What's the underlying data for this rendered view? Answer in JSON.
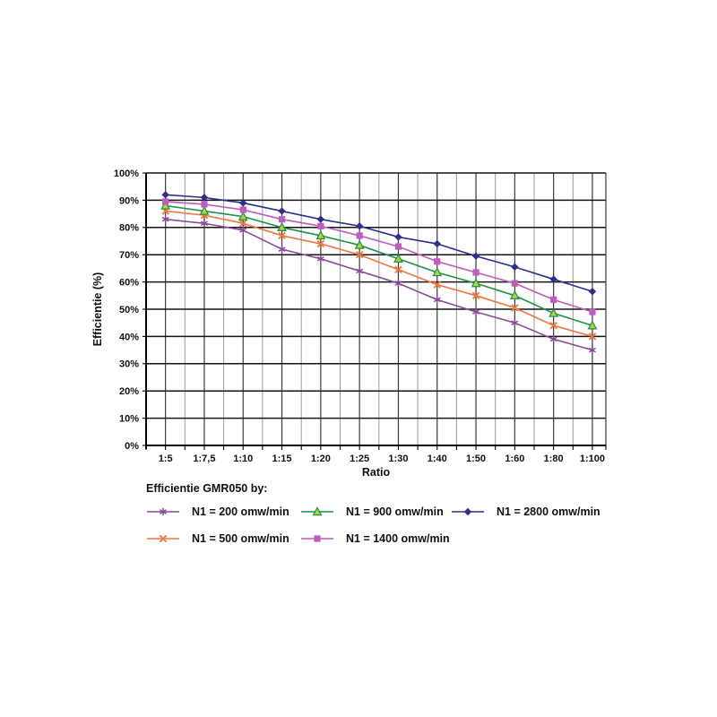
{
  "page": {
    "background": "#ffffff"
  },
  "chart_data": {
    "type": "line",
    "title": "",
    "legend_title": "Efficientie GMR050 by:",
    "xlabel": "Ratio",
    "ylabel": "Efficientie (%)",
    "categories": [
      "1:5",
      "1:7,5",
      "1:10",
      "1:15",
      "1:20",
      "1:25",
      "1:30",
      "1:40",
      "1:50",
      "1:60",
      "1:80",
      "1:100"
    ],
    "ylim": [
      0,
      100
    ],
    "y_tick_step": 10,
    "y_tick_labels": [
      "0%",
      "10%",
      "20%",
      "30%",
      "40%",
      "50%",
      "60%",
      "70%",
      "80%",
      "90%",
      "100%"
    ],
    "grid": "on",
    "legend_position": "bottom",
    "series": [
      {
        "name": "N1 = 200 omw/min",
        "color": "#8a4a9b",
        "marker": "star",
        "values": [
          83,
          81.5,
          79,
          72,
          68.5,
          64,
          59.5,
          53.5,
          49,
          45,
          39,
          35
        ]
      },
      {
        "name": "N1 = 500 omw/min",
        "color": "#f0763b",
        "marker": "x",
        "values": [
          86,
          84.5,
          81.5,
          77,
          74,
          70,
          64.5,
          59,
          55,
          50.5,
          44,
          40
        ]
      },
      {
        "name": "N1 = 900 omw/min",
        "color": "#1e9148",
        "marker": "triangle",
        "marker_fill": "#b3d338",
        "values": [
          88,
          86,
          84,
          80,
          77,
          73.5,
          68.5,
          63.5,
          59.5,
          55,
          48.5,
          44
        ]
      },
      {
        "name": "N1 = 1400 omw/min",
        "color": "#c05cbe",
        "marker": "square",
        "values": [
          89.5,
          88.5,
          86.5,
          83,
          80.5,
          77,
          73,
          67.5,
          63.5,
          59.5,
          53.5,
          49
        ]
      },
      {
        "name": "N1 = 2800 omw/min",
        "color": "#2c2f8e",
        "marker": "diamond",
        "values": [
          92,
          91,
          89,
          86,
          83,
          80.5,
          76.5,
          74,
          69.5,
          65.5,
          61,
          56.5
        ]
      }
    ],
    "grid_colors": {
      "h_major": "#151515",
      "v_major": "#3a3a3a",
      "v_minor": "#9a9a9a",
      "axis": "#000000"
    }
  }
}
